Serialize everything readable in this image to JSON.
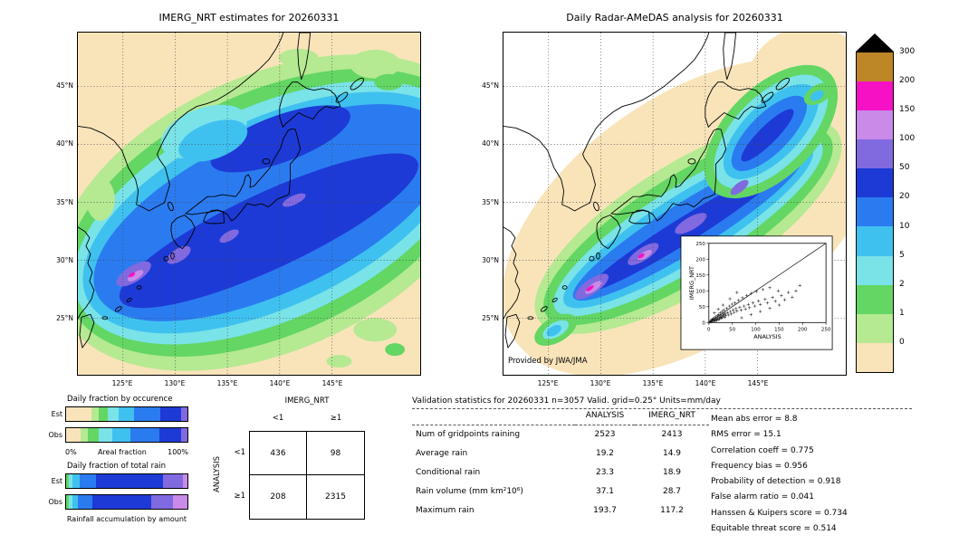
{
  "colorbar": {
    "tick_labels": [
      "300",
      "200",
      "150",
      "100",
      "50",
      "20",
      "10",
      "5",
      "2",
      "1",
      "0"
    ],
    "segment_keys": [
      "300",
      "200",
      "150",
      "100",
      "50",
      "20",
      "10",
      "5",
      "2",
      "1",
      "0"
    ],
    "palette": {
      "over": "#000000",
      "300": "#bd8627",
      "200": "#f711c5",
      "150": "#c98ae8",
      "100": "#8169e0",
      "50": "#1d3ad6",
      "20": "#2b7bf0",
      "10": "#3fc1f0",
      "5": "#79e3e8",
      "2": "#63d664",
      "1": "#b5e992",
      "0": "#f9e4ba"
    }
  },
  "chart_data": [
    {
      "type": "heatmap",
      "role": "precipitation-map",
      "title": "IMERG_NRT estimates for 20260331",
      "units": "mm/day",
      "levels": [
        0,
        1,
        2,
        5,
        10,
        20,
        50,
        100,
        150,
        200,
        300
      ],
      "lat_ticks": [
        "45°N",
        "40°N",
        "35°N",
        "30°N",
        "25°N"
      ],
      "lon_ticks": [
        "125°E",
        "130°E",
        "135°E",
        "140°E",
        "145°E"
      ]
    },
    {
      "type": "heatmap",
      "role": "precipitation-map",
      "title": "Daily Radar-AMeDAS analysis for 20260331",
      "credit": "Provided by JWA/JMA",
      "units": "mm/day",
      "levels": [
        0,
        1,
        2,
        5,
        10,
        20,
        50,
        100,
        150,
        200,
        300
      ],
      "lat_ticks": [
        "45°N",
        "40°N",
        "35°N",
        "30°N",
        "25°N"
      ],
      "lon_ticks": [
        "125°E",
        "130°E",
        "135°E",
        "140°E",
        "145°E"
      ]
    },
    {
      "type": "bar",
      "variant": "stacked-horizontal-fraction",
      "title": "Daily fraction by occurence",
      "xlabel": "Areal fraction",
      "xlim_labels": [
        "0%",
        "100%"
      ],
      "rows": [
        {
          "label": "Est",
          "segments": [
            {
              "level": "0",
              "pct": 21
            },
            {
              "level": "1",
              "pct": 6
            },
            {
              "level": "2",
              "pct": 7
            },
            {
              "level": "5",
              "pct": 9
            },
            {
              "level": "10",
              "pct": 13
            },
            {
              "level": "20",
              "pct": 22
            },
            {
              "level": "50",
              "pct": 17
            },
            {
              "level": "100",
              "pct": 5
            }
          ]
        },
        {
          "label": "Obs",
          "segments": [
            {
              "level": "0",
              "pct": 12
            },
            {
              "level": "1",
              "pct": 6
            },
            {
              "level": "2",
              "pct": 9
            },
            {
              "level": "5",
              "pct": 11
            },
            {
              "level": "10",
              "pct": 15
            },
            {
              "level": "20",
              "pct": 24
            },
            {
              "level": "50",
              "pct": 18
            },
            {
              "level": "100",
              "pct": 5
            }
          ]
        }
      ]
    },
    {
      "type": "bar",
      "variant": "stacked-horizontal-fraction",
      "title": "Daily fraction of total rain",
      "footer": "Rainfall accumulation by amount",
      "rows": [
        {
          "label": "Est",
          "segments": [
            {
              "level": "2",
              "pct": 2
            },
            {
              "level": "5",
              "pct": 3
            },
            {
              "level": "10",
              "pct": 6
            },
            {
              "level": "20",
              "pct": 14
            },
            {
              "level": "50",
              "pct": 55
            },
            {
              "level": "100",
              "pct": 16
            },
            {
              "level": "150",
              "pct": 4
            }
          ]
        },
        {
          "label": "Obs",
          "segments": [
            {
              "level": "2",
              "pct": 2
            },
            {
              "level": "5",
              "pct": 3
            },
            {
              "level": "10",
              "pct": 5
            },
            {
              "level": "20",
              "pct": 12
            },
            {
              "level": "50",
              "pct": 48
            },
            {
              "level": "100",
              "pct": 18
            },
            {
              "level": "150",
              "pct": 12
            }
          ]
        }
      ]
    },
    {
      "type": "table",
      "role": "contingency-table",
      "col_group": "IMERG_NRT",
      "row_group": "ANALYSIS",
      "col_labels": [
        "<1",
        "≥1"
      ],
      "row_labels": [
        "<1",
        "≥1"
      ],
      "values": [
        [
          436,
          98
        ],
        [
          208,
          2315
        ]
      ]
    },
    {
      "type": "table",
      "role": "validation-statistics",
      "title": "Validation statistics for 20260331  n=3057 Valid. grid=0.25° Units=mm/day",
      "columns": [
        "ANALYSIS",
        "IMERG_NRT"
      ],
      "rows": [
        {
          "label": "Num of gridpoints raining",
          "values": [
            "2523",
            "2413"
          ]
        },
        {
          "label": "Average rain",
          "values": [
            "19.2",
            "14.9"
          ]
        },
        {
          "label": "Conditional rain",
          "values": [
            "23.3",
            "18.9"
          ]
        },
        {
          "label": "Rain volume (mm km²10⁶)",
          "values": [
            "37.1",
            "28.7"
          ]
        },
        {
          "label": "Maximum rain",
          "values": [
            "193.7",
            "117.2"
          ]
        }
      ],
      "summary": [
        {
          "label": "Mean abs error",
          "value": "8.8"
        },
        {
          "label": "RMS error",
          "value": "15.1"
        },
        {
          "label": "Correlation coeff",
          "value": "0.775"
        },
        {
          "label": "Frequency bias",
          "value": "0.956"
        },
        {
          "label": "Probability of detection",
          "value": "0.918"
        },
        {
          "label": "False alarm ratio",
          "value": "0.041"
        },
        {
          "label": "Hanssen & Kuipers score",
          "value": "0.734"
        },
        {
          "label": "Equitable threat score",
          "value": "0.514"
        }
      ]
    },
    {
      "type": "scatter",
      "role": "imerg-vs-analysis-inset",
      "xlabel": "ANALYSIS",
      "ylabel": "IMERG_NRT",
      "xlim": [
        0,
        250
      ],
      "ylim": [
        0,
        250
      ],
      "ticks": [
        0,
        50,
        100,
        150,
        200,
        250
      ],
      "marker": "+",
      "identity_line": true,
      "points": [
        [
          2,
          1
        ],
        [
          3,
          4
        ],
        [
          4,
          2
        ],
        [
          5,
          7
        ],
        [
          6,
          3
        ],
        [
          7,
          10
        ],
        [
          8,
          5
        ],
        [
          9,
          12
        ],
        [
          10,
          8
        ],
        [
          11,
          4
        ],
        [
          12,
          15
        ],
        [
          13,
          9
        ],
        [
          14,
          6
        ],
        [
          15,
          18
        ],
        [
          16,
          11
        ],
        [
          17,
          7
        ],
        [
          18,
          22
        ],
        [
          19,
          13
        ],
        [
          20,
          9
        ],
        [
          21,
          25
        ],
        [
          22,
          16
        ],
        [
          23,
          11
        ],
        [
          24,
          30
        ],
        [
          25,
          18
        ],
        [
          26,
          13
        ],
        [
          27,
          21
        ],
        [
          28,
          35
        ],
        [
          29,
          15
        ],
        [
          30,
          24
        ],
        [
          31,
          19
        ],
        [
          32,
          40
        ],
        [
          33,
          26
        ],
        [
          34,
          17
        ],
        [
          35,
          29
        ],
        [
          36,
          22
        ],
        [
          38,
          45
        ],
        [
          40,
          31
        ],
        [
          42,
          24
        ],
        [
          44,
          52
        ],
        [
          46,
          35
        ],
        [
          48,
          27
        ],
        [
          50,
          58
        ],
        [
          52,
          40
        ],
        [
          54,
          32
        ],
        [
          56,
          62
        ],
        [
          58,
          44
        ],
        [
          60,
          36
        ],
        [
          63,
          70
        ],
        [
          66,
          48
        ],
        [
          69,
          39
        ],
        [
          72,
          78
        ],
        [
          75,
          52
        ],
        [
          78,
          43
        ],
        [
          81,
          85
        ],
        [
          84,
          57
        ],
        [
          87,
          47
        ],
        [
          90,
          92
        ],
        [
          94,
          62
        ],
        [
          98,
          52
        ],
        [
          102,
          98
        ],
        [
          106,
          68
        ],
        [
          110,
          57
        ],
        [
          115,
          104
        ],
        [
          120,
          73
        ],
        [
          125,
          62
        ],
        [
          130,
          110
        ],
        [
          136,
          79
        ],
        [
          142,
          67
        ],
        [
          148,
          100
        ],
        [
          155,
          85
        ],
        [
          162,
          72
        ],
        [
          170,
          95
        ],
        [
          178,
          80
        ],
        [
          186,
          100
        ],
        [
          194,
          117
        ],
        [
          60,
          95
        ],
        [
          45,
          75
        ],
        [
          30,
          55
        ],
        [
          20,
          42
        ],
        [
          12,
          30
        ],
        [
          70,
          15
        ],
        [
          90,
          25
        ],
        [
          110,
          35
        ],
        [
          130,
          45
        ],
        [
          150,
          55
        ]
      ]
    }
  ]
}
